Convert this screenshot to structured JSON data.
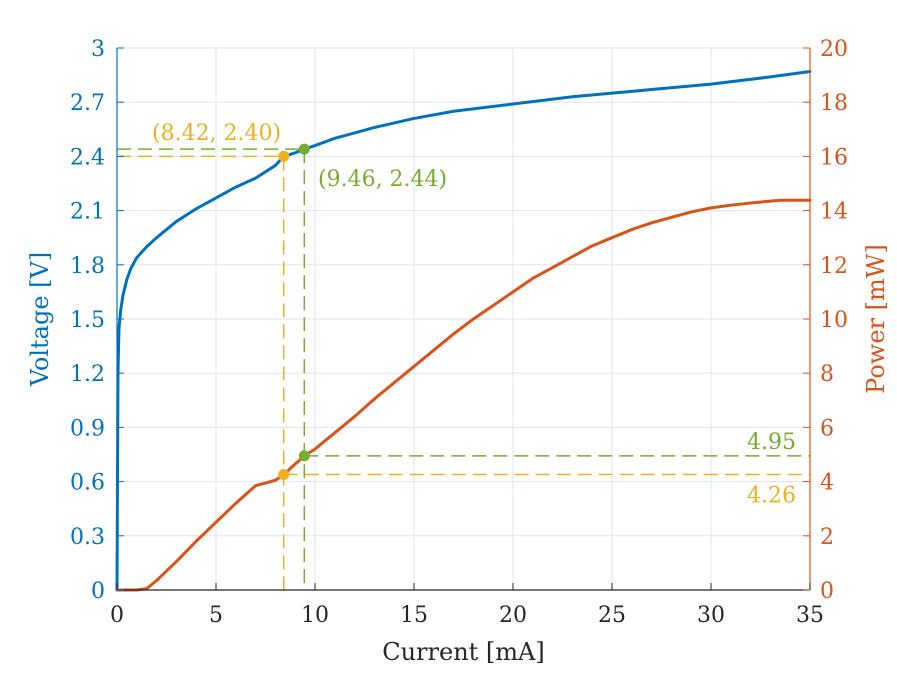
{
  "chart_data": {
    "type": "line",
    "xlabel": "Current [mA]",
    "ylabel_left": "Voltage [V]",
    "ylabel_right": "Power [mW]",
    "xlim": [
      0,
      35
    ],
    "ylim_left": [
      0,
      3
    ],
    "ylim_right": [
      0,
      20
    ],
    "xticks": [
      0,
      5,
      10,
      15,
      20,
      25,
      30,
      35
    ],
    "yticks_left": [
      0,
      0.3,
      0.6,
      0.9,
      1.2,
      1.5,
      1.8,
      2.1,
      2.4,
      2.7,
      3
    ],
    "yticks_left_labels": [
      "0",
      "0.3",
      "0.6",
      "0.9",
      "1.2",
      "1.5",
      "1.8",
      "2.1",
      "2.4",
      "2.7",
      "3"
    ],
    "yticks_right": [
      0,
      2,
      4,
      6,
      8,
      10,
      12,
      14,
      16,
      18,
      20
    ],
    "grid": true,
    "series": [
      {
        "axis": "left",
        "color": "#0072BD",
        "x": [
          0,
          0.02,
          0.05,
          0.1,
          0.2,
          0.3,
          0.5,
          0.7,
          1,
          1.5,
          2,
          3,
          4,
          5,
          6,
          7,
          8,
          8.42,
          9,
          9.46,
          10,
          11,
          12,
          13,
          15,
          17,
          20,
          23,
          25,
          27,
          30,
          33,
          35
        ],
        "y": [
          0,
          0.5,
          1.2,
          1.45,
          1.56,
          1.63,
          1.72,
          1.78,
          1.84,
          1.9,
          1.95,
          2.04,
          2.11,
          2.17,
          2.23,
          2.28,
          2.35,
          2.4,
          2.42,
          2.44,
          2.46,
          2.5,
          2.53,
          2.56,
          2.61,
          2.65,
          2.69,
          2.73,
          2.75,
          2.77,
          2.8,
          2.84,
          2.87
        ]
      },
      {
        "axis": "right",
        "color": "#D95319",
        "x": [
          0,
          0.5,
          1,
          1.5,
          2,
          3,
          4,
          5,
          6,
          7,
          8,
          8.42,
          9,
          9.46,
          10,
          11,
          12,
          13,
          14,
          15,
          16,
          17,
          18,
          19,
          20,
          21,
          22,
          23,
          24,
          25,
          26,
          27,
          28,
          29,
          30,
          31,
          32,
          33,
          33.5,
          34,
          35
        ],
        "y": [
          0,
          0,
          0,
          0.05,
          0.35,
          1.05,
          1.8,
          2.5,
          3.2,
          3.85,
          4.05,
          4.26,
          4.65,
          4.95,
          5.2,
          5.8,
          6.4,
          7.05,
          7.65,
          8.25,
          8.85,
          9.45,
          10.0,
          10.5,
          11.0,
          11.5,
          11.9,
          12.3,
          12.7,
          13.0,
          13.3,
          13.55,
          13.75,
          13.95,
          14.1,
          14.2,
          14.28,
          14.35,
          14.38,
          14.38,
          14.38
        ]
      }
    ],
    "annotations": [
      {
        "label": "(8.42, 2.40)",
        "color": "#EDB120",
        "x": 8.42,
        "y_left": 2.4,
        "y_right": 4.26,
        "right_value_label": "4.26"
      },
      {
        "label": "(9.46, 2.44)",
        "color": "#77AC30",
        "x": 9.46,
        "y_left": 2.44,
        "y_right": 4.95,
        "right_value_label": "4.95"
      }
    ],
    "colors": {
      "left_axis": "#0072BD",
      "right_axis": "#D95319",
      "x_axis": "#262626",
      "grid": "#DCE6F0"
    }
  }
}
